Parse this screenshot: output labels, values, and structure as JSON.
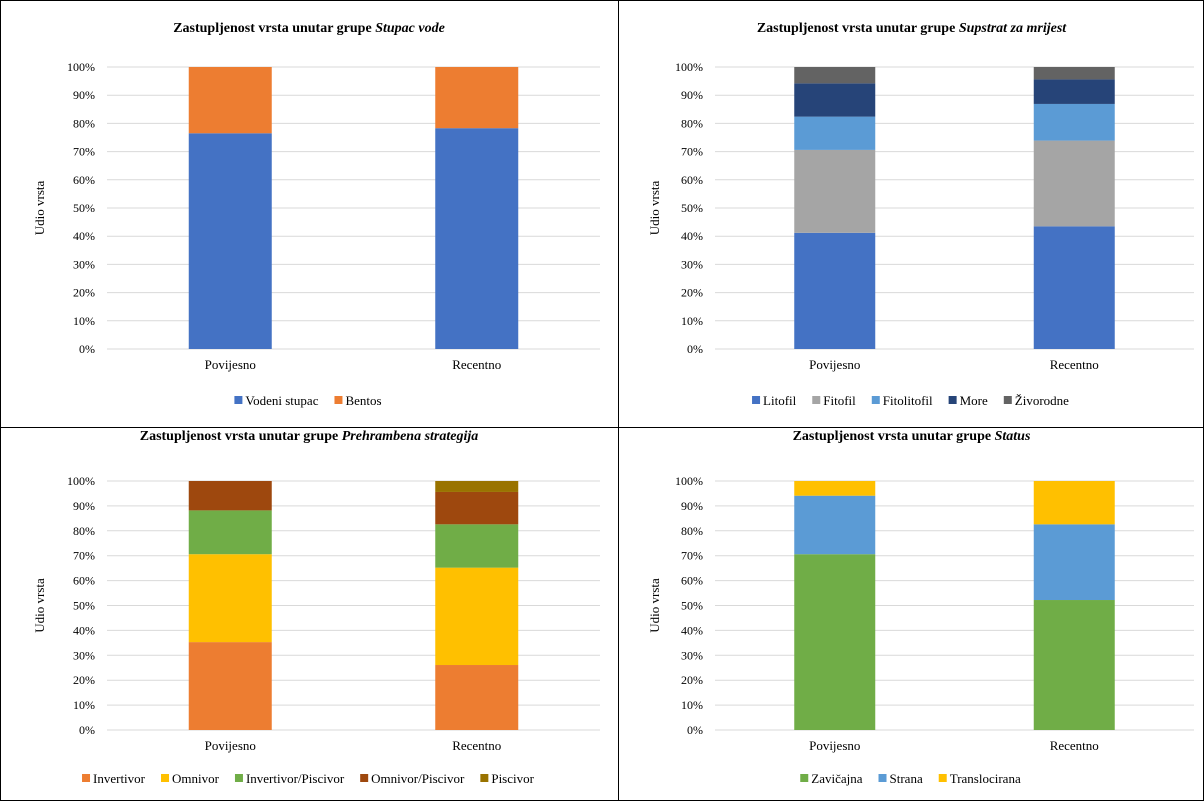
{
  "chart_data": [
    {
      "type": "bar",
      "stacked": true,
      "title_prefix": "Zastupljenost vrsta unutar grupe ",
      "title_italic": "Stupac vode",
      "categories": [
        "Povijesno",
        "Recentno"
      ],
      "ylabel": "Udio vrsta",
      "ylim": [
        0,
        100
      ],
      "yticks": [
        "0%",
        "10%",
        "20%",
        "30%",
        "40%",
        "50%",
        "60%",
        "70%",
        "80%",
        "90%",
        "100%"
      ],
      "grid": true,
      "legend_position": "bottom",
      "series": [
        {
          "name": "Vodeni stupac",
          "color": "#4472C4",
          "values": [
            76.5,
            78.3
          ]
        },
        {
          "name": "Bentos",
          "color": "#ED7D31",
          "values": [
            23.5,
            21.7
          ]
        }
      ]
    },
    {
      "type": "bar",
      "stacked": true,
      "title_prefix": "Zastupljenost vrsta unutar grupe ",
      "title_italic": "Supstrat za mrijest",
      "categories": [
        "Povijesno",
        "Recentno"
      ],
      "ylabel": "Udio vrsta",
      "ylim": [
        0,
        100
      ],
      "yticks": [
        "0%",
        "10%",
        "20%",
        "30%",
        "40%",
        "50%",
        "60%",
        "70%",
        "80%",
        "90%",
        "100%"
      ],
      "grid": true,
      "legend_position": "bottom",
      "series": [
        {
          "name": "Litofil",
          "color": "#4472C4",
          "values": [
            41.2,
            43.5
          ]
        },
        {
          "name": "Fitofil",
          "color": "#A5A5A5",
          "values": [
            29.4,
            30.4
          ]
        },
        {
          "name": "Fitolitofil",
          "color": "#5B9BD5",
          "values": [
            11.8,
            13.0
          ]
        },
        {
          "name": "More",
          "color": "#264478",
          "values": [
            11.8,
            8.7
          ]
        },
        {
          "name": "Živorodne",
          "color": "#636363",
          "values": [
            5.8,
            4.4
          ]
        }
      ]
    },
    {
      "type": "bar",
      "stacked": true,
      "title_prefix": "Zastupljenost vrsta unutar grupe ",
      "title_italic": "Prehrambena strategija",
      "categories": [
        "Povijesno",
        "Recentno"
      ],
      "ylabel": "Udio vrsta",
      "ylim": [
        0,
        100
      ],
      "yticks": [
        "0%",
        "10%",
        "20%",
        "30%",
        "40%",
        "50%",
        "60%",
        "70%",
        "80%",
        "90%",
        "100%"
      ],
      "grid": true,
      "legend_position": "bottom",
      "series": [
        {
          "name": "Invertivor",
          "color": "#ED7D31",
          "values": [
            35.3,
            26.1
          ]
        },
        {
          "name": "Omnivor",
          "color": "#FFC000",
          "values": [
            35.3,
            39.1
          ]
        },
        {
          "name": "Invertivor/Piscivor",
          "color": "#70AD47",
          "values": [
            17.6,
            17.4
          ]
        },
        {
          "name": "Omnivor/Piscivor",
          "color": "#9E480E",
          "values": [
            11.8,
            13.0
          ]
        },
        {
          "name": "Piscivor",
          "color": "#997300",
          "values": [
            0,
            4.4
          ]
        }
      ]
    },
    {
      "type": "bar",
      "stacked": true,
      "title_prefix": "Zastupljenost vrsta unutar grupe ",
      "title_italic": "Status",
      "categories": [
        "Povijesno",
        "Recentno"
      ],
      "ylabel": "Udio vrsta",
      "ylim": [
        0,
        100
      ],
      "yticks": [
        "0%",
        "10%",
        "20%",
        "30%",
        "40%",
        "50%",
        "60%",
        "70%",
        "80%",
        "90%",
        "100%"
      ],
      "grid": true,
      "legend_position": "bottom",
      "series": [
        {
          "name": "Zavičajna",
          "color": "#70AD47",
          "values": [
            70.6,
            52.2
          ]
        },
        {
          "name": "Strana",
          "color": "#5B9BD5",
          "values": [
            23.5,
            30.4
          ]
        },
        {
          "name": "Translocirana",
          "color": "#FFC000",
          "values": [
            5.9,
            17.4
          ]
        }
      ]
    }
  ]
}
